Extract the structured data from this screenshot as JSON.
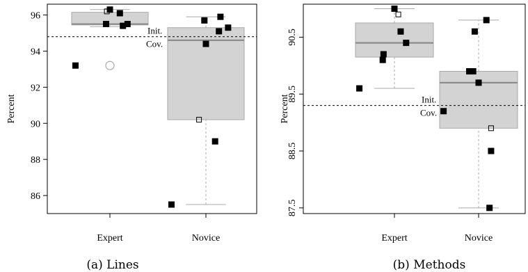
{
  "chart_data": [
    {
      "type": "boxplot",
      "caption": "(a) Lines",
      "ylabel": "Percent",
      "categories": [
        "Expert",
        "Novice"
      ],
      "ylim": [
        85.0,
        96.6
      ],
      "yticks": [
        86,
        88,
        90,
        92,
        94,
        96
      ],
      "ytick_labels": [
        "86",
        "88",
        "90",
        "92",
        "94",
        "96"
      ],
      "reference_line": {
        "value": 94.8,
        "label_line1": "Init.",
        "label_line2": "Cov."
      },
      "boxes": [
        {
          "category": "Expert",
          "whisker_low": 95.35,
          "q1": 95.45,
          "median": 95.5,
          "q3": 96.15,
          "whisker_high": 96.3,
          "outliers": [
            93.2
          ]
        },
        {
          "category": "Novice",
          "whisker_low": 85.5,
          "q1": 90.2,
          "median": 94.6,
          "q3": 95.3,
          "whisker_high": 95.9,
          "outliers": []
        }
      ],
      "points": [
        {
          "category": "Expert",
          "jitter": -0.45,
          "value": 93.2
        },
        {
          "category": "Expert",
          "jitter": -0.05,
          "value": 95.5
        },
        {
          "category": "Expert",
          "jitter": 0.0,
          "value": 96.3
        },
        {
          "category": "Expert",
          "jitter": 0.13,
          "value": 96.1
        },
        {
          "category": "Expert",
          "jitter": 0.17,
          "value": 95.4
        },
        {
          "category": "Expert",
          "jitter": 0.23,
          "value": 95.5
        },
        {
          "category": "Novice",
          "jitter": -0.45,
          "value": 85.5
        },
        {
          "category": "Novice",
          "jitter": -0.02,
          "value": 95.7
        },
        {
          "category": "Novice",
          "jitter": 0.0,
          "value": 94.4
        },
        {
          "category": "Novice",
          "jitter": 0.12,
          "value": 89.0
        },
        {
          "category": "Novice",
          "jitter": 0.17,
          "value": 95.1
        },
        {
          "category": "Novice",
          "jitter": 0.19,
          "value": 95.9
        },
        {
          "category": "Novice",
          "jitter": 0.29,
          "value": 95.3
        }
      ],
      "means": [
        {
          "category": "Expert",
          "jitter": -0.04,
          "value": 96.2
        },
        {
          "category": "Novice",
          "jitter": -0.09,
          "value": 90.2
        }
      ]
    },
    {
      "type": "boxplot",
      "caption": "(b) Methods",
      "ylabel": "Percent",
      "categories": [
        "Expert",
        "Novice"
      ],
      "ylim": [
        87.4,
        91.08
      ],
      "yticks": [
        87.5,
        88.5,
        89.5,
        90.5
      ],
      "ytick_labels": [
        "87.5",
        "88.5",
        "89.5",
        "90.5"
      ],
      "reference_line": {
        "value": 89.3,
        "label_line1": "Init.",
        "label_line2": "Cov."
      },
      "boxes": [
        {
          "category": "Expert",
          "whisker_low": 89.6,
          "q1": 90.15,
          "median": 90.4,
          "q3": 90.75,
          "whisker_high": 91.0,
          "outliers": []
        },
        {
          "category": "Novice",
          "whisker_low": 87.5,
          "q1": 88.9,
          "median": 89.7,
          "q3": 89.9,
          "whisker_high": 90.8,
          "outliers": []
        }
      ],
      "points": [
        {
          "category": "Expert",
          "jitter": -0.45,
          "value": 89.6
        },
        {
          "category": "Expert",
          "jitter": -0.15,
          "value": 90.1
        },
        {
          "category": "Expert",
          "jitter": -0.14,
          "value": 90.2
        },
        {
          "category": "Expert",
          "jitter": 0.0,
          "value": 91.0
        },
        {
          "category": "Expert",
          "jitter": 0.08,
          "value": 90.6
        },
        {
          "category": "Expert",
          "jitter": 0.15,
          "value": 90.4
        },
        {
          "category": "Novice",
          "jitter": -0.45,
          "value": 89.2
        },
        {
          "category": "Novice",
          "jitter": -0.12,
          "value": 89.9
        },
        {
          "category": "Novice",
          "jitter": -0.07,
          "value": 89.9
        },
        {
          "category": "Novice",
          "jitter": -0.05,
          "value": 90.6
        },
        {
          "category": "Novice",
          "jitter": 0.0,
          "value": 89.7
        },
        {
          "category": "Novice",
          "jitter": 0.1,
          "value": 90.8
        },
        {
          "category": "Novice",
          "jitter": 0.16,
          "value": 88.5
        },
        {
          "category": "Novice",
          "jitter": 0.14,
          "value": 87.5
        }
      ],
      "means": [
        {
          "category": "Expert",
          "jitter": 0.05,
          "value": 90.9
        },
        {
          "category": "Novice",
          "jitter": 0.16,
          "value": 88.9
        }
      ]
    }
  ]
}
